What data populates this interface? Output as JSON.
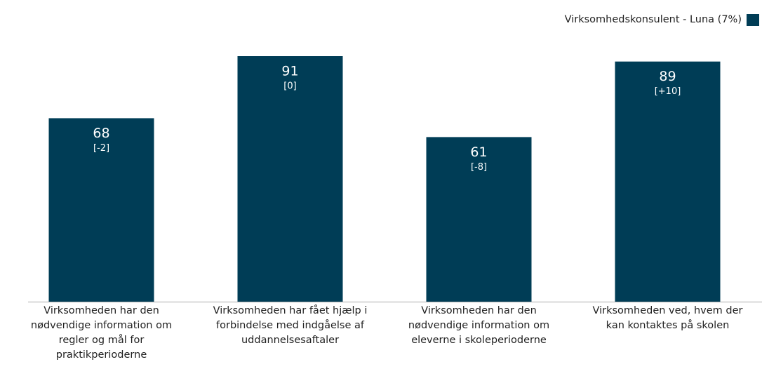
{
  "chart_data": {
    "type": "bar",
    "legend": "Virksomhedskonsulent - Luna (7%)",
    "series": [
      {
        "name": "Virksomhedskonsulent - Luna (7%)",
        "color": "#003d56",
        "values": [
          68,
          91,
          61,
          89
        ],
        "change_labels": [
          "[-2]",
          "[0]",
          "[-8]",
          "[+10]"
        ]
      }
    ],
    "categories": [
      "Virksomheden har den nødvendige information om regler og mål for praktikperioderne",
      "Virksomheden har fået hjælp i forbindelse med indgåelse af uddannelsesaftaler",
      "Virksomheden har den nødvendige information om eleverne i skoleperioderne",
      "Virksomheden ved, hvem der kan kontaktes på skolen"
    ],
    "legend_position": "top-right"
  }
}
